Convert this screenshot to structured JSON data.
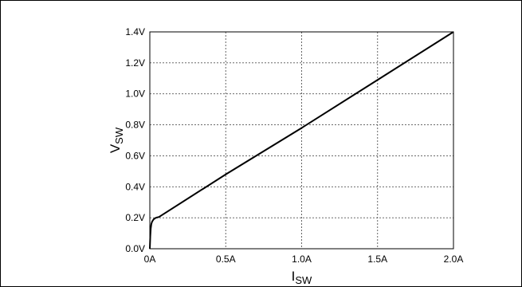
{
  "chart_data": {
    "type": "line",
    "xlabel": {
      "main": "I",
      "sub": "SW"
    },
    "ylabel": {
      "main": "V",
      "sub": "SW"
    },
    "xlim": [
      0,
      2.0
    ],
    "ylim": [
      0,
      1.4
    ],
    "x_ticks": [
      {
        "value": 0,
        "label": "0A"
      },
      {
        "value": 0.5,
        "label": "0.5A"
      },
      {
        "value": 1.0,
        "label": "1.0A"
      },
      {
        "value": 1.5,
        "label": "1.5A"
      },
      {
        "value": 2.0,
        "label": "2.0A"
      }
    ],
    "y_ticks": [
      {
        "value": 0,
        "label": "0.0V"
      },
      {
        "value": 0.2,
        "label": "0.2V"
      },
      {
        "value": 0.4,
        "label": "0.4V"
      },
      {
        "value": 0.6,
        "label": "0.6V"
      },
      {
        "value": 0.8,
        "label": "0.8V"
      },
      {
        "value": 1.0,
        "label": "1.0V"
      },
      {
        "value": 1.2,
        "label": "1.2V"
      },
      {
        "value": 1.4,
        "label": "1.4V"
      }
    ],
    "grid": true,
    "series": [
      {
        "color": "#000000",
        "x": [
          0,
          0.003,
          0.006,
          0.01,
          0.015,
          0.025,
          0.04,
          0.06,
          0.5,
          1.0,
          1.5,
          2.0
        ],
        "y": [
          0,
          0.08,
          0.13,
          0.16,
          0.175,
          0.19,
          0.2,
          0.205,
          0.48,
          0.78,
          1.09,
          1.4
        ]
      }
    ]
  }
}
